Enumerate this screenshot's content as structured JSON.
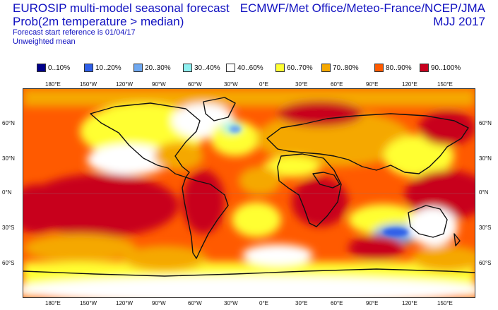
{
  "header": {
    "title": "EUROSIP multi-model seasonal forecast",
    "subtitle": "Prob(2m temperature > median)",
    "line3": "Forecast start reference is 01/04/17",
    "line4": "Unweighted mean",
    "centres": "ECMWF/Met Office/Meteo-France/NCEP/JMA",
    "season": "MJJ 2017"
  },
  "legend": [
    {
      "label": "0..10%",
      "color": "#00008b"
    },
    {
      "label": "10..20%",
      "color": "#2f5fe8"
    },
    {
      "label": "20..30%",
      "color": "#6fa8f0"
    },
    {
      "label": "30..40%",
      "color": "#8ff0f0"
    },
    {
      "label": "40..60%",
      "color": "#ffffff"
    },
    {
      "label": "60..70%",
      "color": "#ffff33"
    },
    {
      "label": "70..80%",
      "color": "#f5a800"
    },
    {
      "label": "80..90%",
      "color": "#ff5a00"
    },
    {
      "label": "90..100%",
      "color": "#c8001e"
    }
  ],
  "map": {
    "lon_ticks": [
      "180°E",
      "150°W",
      "120°W",
      "90°W",
      "60°W",
      "30°W",
      "0°E",
      "30°E",
      "60°E",
      "90°E",
      "120°E",
      "150°E"
    ],
    "lat_ticks": [
      "60°N",
      "30°N",
      "0°N",
      "30°S",
      "60°S"
    ]
  }
}
